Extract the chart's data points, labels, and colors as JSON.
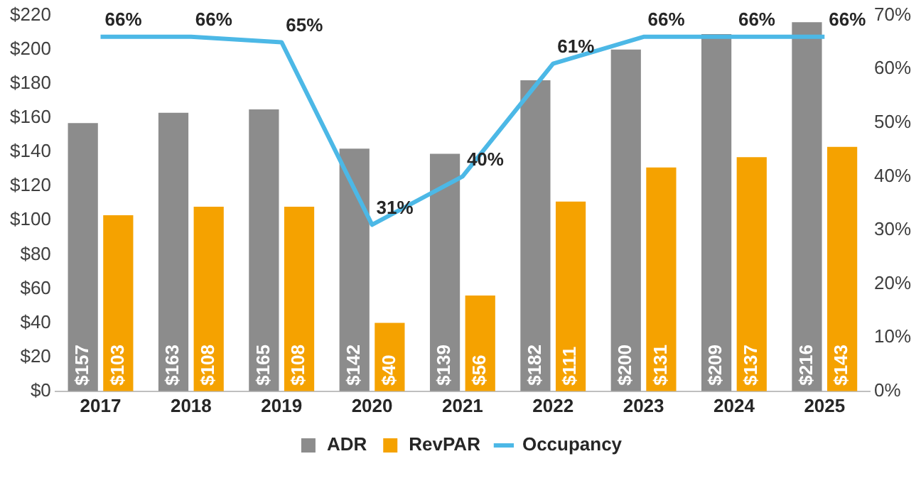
{
  "chart_data": {
    "type": "bar",
    "categories": [
      "2017",
      "2018",
      "2019",
      "2020",
      "2021",
      "2022",
      "2023",
      "2024",
      "2025"
    ],
    "series": [
      {
        "name": "ADR",
        "color": "#8c8c8c",
        "values": [
          157,
          163,
          165,
          142,
          139,
          182,
          200,
          209,
          216
        ],
        "value_labels": [
          "$157",
          "$163",
          "$165",
          "$142",
          "$139",
          "$182",
          "$200",
          "$209",
          "$216"
        ]
      },
      {
        "name": "RevPAR",
        "color": "#f5a200",
        "values": [
          103,
          108,
          108,
          40,
          56,
          111,
          131,
          137,
          143
        ],
        "value_labels": [
          "$103",
          "$108",
          "$108",
          "$40",
          "$56",
          "$111",
          "$131",
          "$137",
          "$143"
        ]
      },
      {
        "name": "Occupancy",
        "type": "line",
        "axis": "y2",
        "color": "#4cb8e6",
        "marker": "none",
        "line_style": "solid",
        "values": [
          66,
          66,
          65,
          31,
          40,
          61,
          66,
          66,
          66
        ],
        "value_labels": [
          "66%",
          "66%",
          "65%",
          "31%",
          "40%",
          "61%",
          "66%",
          "66%",
          "66%"
        ]
      }
    ],
    "ylim": [
      0,
      220
    ],
    "yticks": [
      {
        "value": 0,
        "label": "$0"
      },
      {
        "value": 20,
        "label": "$20"
      },
      {
        "value": 40,
        "label": "$40"
      },
      {
        "value": 60,
        "label": "$60"
      },
      {
        "value": 80,
        "label": "$80"
      },
      {
        "value": 100,
        "label": "$100"
      },
      {
        "value": 120,
        "label": "$120"
      },
      {
        "value": 140,
        "label": "$140"
      },
      {
        "value": 160,
        "label": "$160"
      },
      {
        "value": 180,
        "label": "$180"
      },
      {
        "value": 200,
        "label": "$200"
      },
      {
        "value": 220,
        "label": "$220"
      }
    ],
    "y2lim": [
      0,
      70
    ],
    "y2ticks": [
      {
        "value": 0,
        "label": "0%"
      },
      {
        "value": 10,
        "label": "10%"
      },
      {
        "value": 20,
        "label": "20%"
      },
      {
        "value": 30,
        "label": "30%"
      },
      {
        "value": 40,
        "label": "40%"
      },
      {
        "value": 50,
        "label": "50%"
      },
      {
        "value": 60,
        "label": "60%"
      },
      {
        "value": 70,
        "label": "70%"
      }
    ],
    "grid": false,
    "legend": "bottom"
  }
}
